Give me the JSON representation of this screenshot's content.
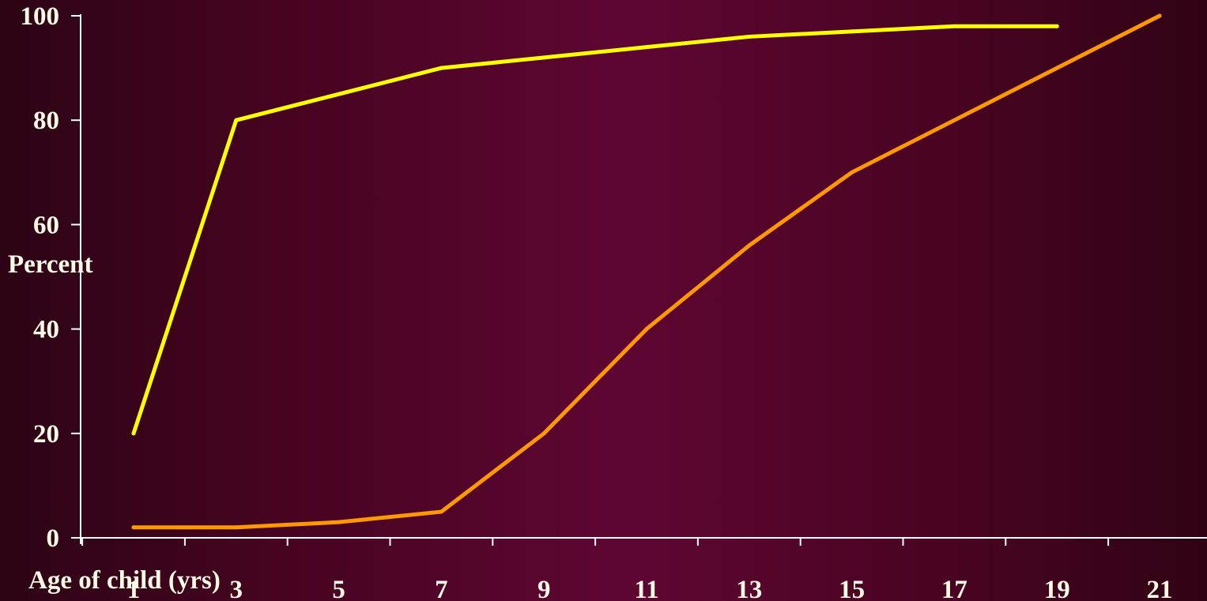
{
  "chart_data": {
    "type": "line",
    "xlabel": "Age of child (yrs)",
    "ylabel": "Percent",
    "x_tick_labels": [
      "1",
      "3",
      "5",
      "7",
      "9",
      "11",
      "13",
      "15",
      "17",
      "19",
      "21"
    ],
    "y_tick_labels": [
      "0",
      "20",
      "40",
      "60",
      "80",
      "100"
    ],
    "ylim": [
      0,
      100
    ],
    "grid": false,
    "series": [
      {
        "color": "#ffff00",
        "x": [
          1,
          3,
          5,
          7,
          9,
          11,
          13,
          15,
          17,
          19
        ],
        "values": [
          20,
          80,
          85,
          90,
          92,
          94,
          96,
          97,
          98,
          98
        ]
      },
      {
        "color": "#ff9900",
        "x": [
          1,
          3,
          5,
          7,
          9,
          11,
          13,
          15,
          17,
          19,
          21
        ],
        "values": [
          2,
          2,
          3,
          5,
          20,
          40,
          56,
          70,
          80,
          90,
          100
        ]
      }
    ]
  }
}
